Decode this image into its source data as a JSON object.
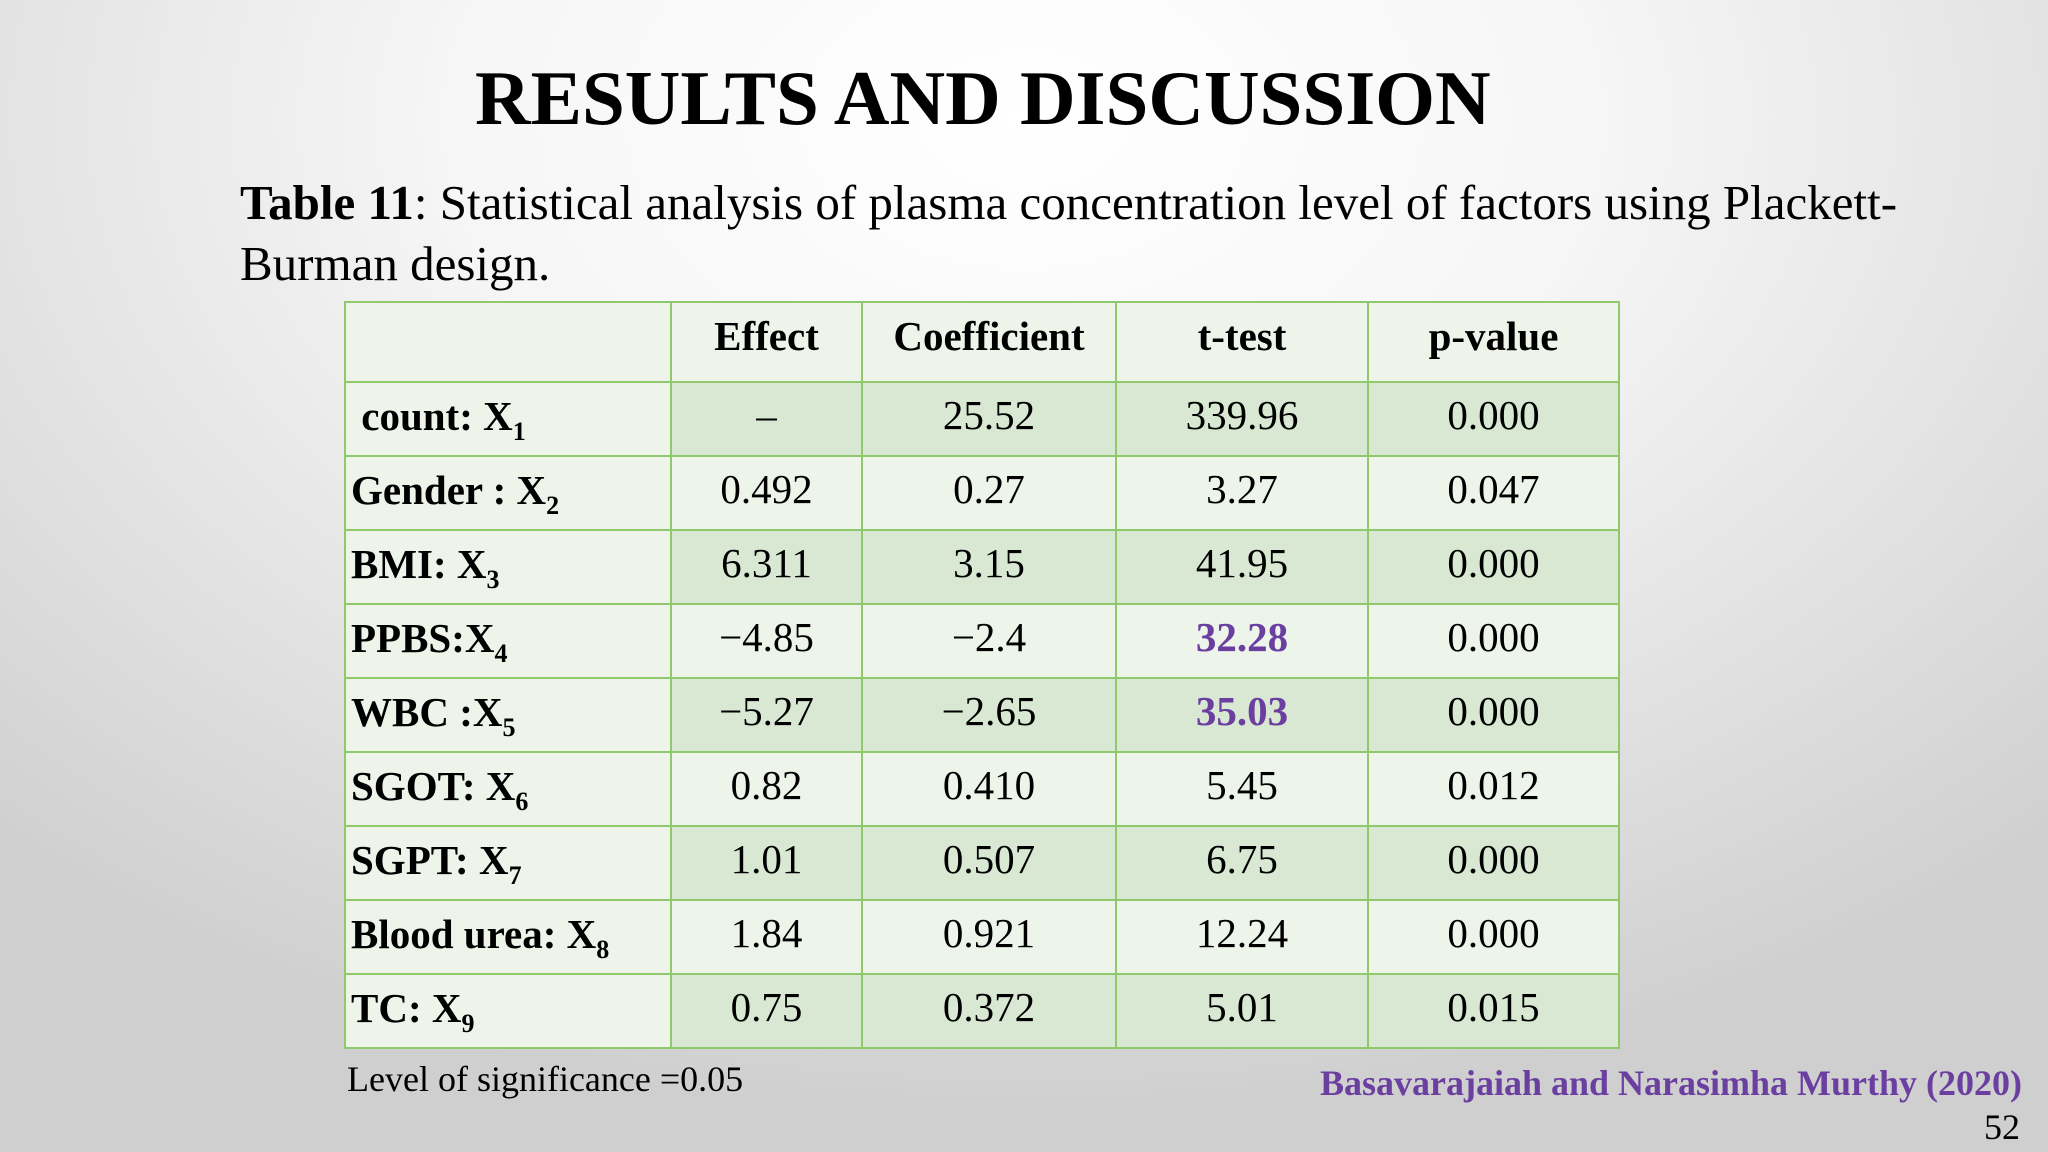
{
  "slide": {
    "title": "RESULTS AND DISCUSSION",
    "caption_label": "Table 11",
    "caption_text": ": Statistical analysis of plasma concentration level of factors using Plackett-Burman design.",
    "note": "Level of significance =0.05",
    "citation": "Basavarajaiah  and Narasimha Murthy (2020)",
    "page_number": "52"
  },
  "table": {
    "headers": [
      "",
      "Effect",
      "Coefficient",
      "t-test",
      "p-value"
    ],
    "rows": [
      {
        "label": "count: X",
        "sub": "1",
        "effect": "–",
        "coefficient": "25.52",
        "ttest": "339.96",
        "pvalue": "0.000"
      },
      {
        "label": "Gender : X",
        "sub": "2",
        "effect": "0.492",
        "coefficient": "0.27",
        "ttest": "3.27",
        "pvalue": "0.047"
      },
      {
        "label": "BMI: X",
        "sub": "3",
        "effect": "6.311",
        "coefficient": "3.15",
        "ttest": "41.95",
        "pvalue": "0.000"
      },
      {
        "label": "PPBS:X",
        "sub": "4",
        "effect": "−4.85",
        "coefficient": "−2.4",
        "ttest": "32.28",
        "pvalue": "0.000"
      },
      {
        "label": "WBC :X",
        "sub": "5",
        "effect": "−5.27",
        "coefficient": "−2.65",
        "ttest": "35.03",
        "pvalue": "0.000"
      },
      {
        "label": "SGOT: X",
        "sub": "6",
        "effect": "0.82",
        "coefficient": "0.410",
        "ttest": "5.45",
        "pvalue": "0.012"
      },
      {
        "label": "SGPT: X",
        "sub": "7",
        "effect": "1.01",
        "coefficient": "0.507",
        "ttest": "6.75",
        "pvalue": "0.000"
      },
      {
        "label": "Blood urea: X",
        "sub": "8",
        "effect": "1.84",
        "coefficient": "0.921",
        "ttest": "12.24",
        "pvalue": "0.000"
      },
      {
        "label": "TC: X",
        "sub": "9",
        "effect": "0.75",
        "coefficient": "0.372",
        "ttest": "5.01",
        "pvalue": "0.015"
      }
    ]
  },
  "colors": {
    "highlight": "#6b3fa0",
    "table_border": "#8fc96b",
    "cell_dark": "#d9e8d3",
    "cell_light": "#edf4ea"
  }
}
